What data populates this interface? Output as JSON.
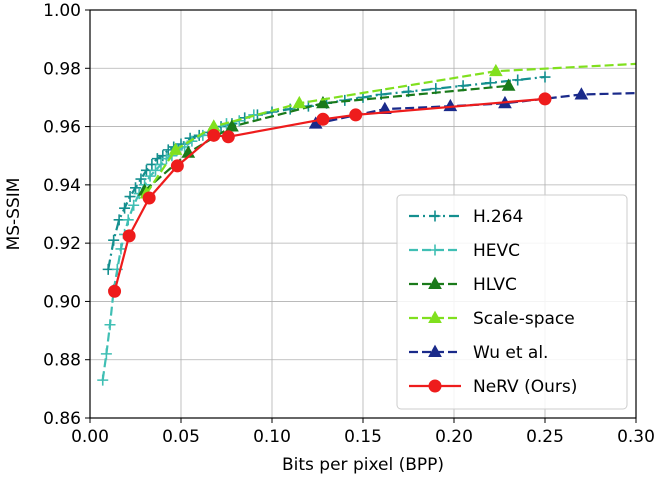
{
  "chart_data": {
    "type": "line",
    "title": "",
    "xlabel": "Bits per pixel (BPP)",
    "ylabel": "MS-SSIM",
    "xlim": [
      0,
      0.3
    ],
    "ylim": [
      0.86,
      1.0
    ],
    "x_ticks": [
      0.0,
      0.05,
      0.1,
      0.15,
      0.2,
      0.25,
      0.3
    ],
    "x_tick_labels": [
      "0.00",
      "0.05",
      "0.10",
      "0.15",
      "0.20",
      "0.25",
      "0.30"
    ],
    "y_ticks": [
      0.86,
      0.88,
      0.9,
      0.92,
      0.94,
      0.96,
      0.98,
      1.0
    ],
    "y_tick_labels": [
      "0.86",
      "0.88",
      "0.90",
      "0.92",
      "0.94",
      "0.96",
      "0.98",
      "1.00"
    ],
    "grid": true,
    "legend_position": "bottom-right",
    "series": [
      {
        "name": "H.264",
        "color": "#148f8f",
        "line": "dashdot",
        "marker": "plus",
        "x": [
          0.01,
          0.013,
          0.016,
          0.019,
          0.022,
          0.025,
          0.028,
          0.031,
          0.034,
          0.037,
          0.04,
          0.043,
          0.046,
          0.05,
          0.055,
          0.06,
          0.066,
          0.072,
          0.078,
          0.085,
          0.092,
          0.1,
          0.11,
          0.12,
          0.13,
          0.14,
          0.15,
          0.16,
          0.175,
          0.19,
          0.205,
          0.22,
          0.235,
          0.25
        ],
        "y": [
          0.911,
          0.921,
          0.928,
          0.932,
          0.936,
          0.939,
          0.942,
          0.945,
          0.947,
          0.949,
          0.95,
          0.952,
          0.953,
          0.954,
          0.956,
          0.957,
          0.958,
          0.96,
          0.961,
          0.963,
          0.964,
          0.965,
          0.966,
          0.967,
          0.968,
          0.969,
          0.97,
          0.971,
          0.972,
          0.973,
          0.974,
          0.975,
          0.976,
          0.977
        ]
      },
      {
        "name": "HEVC",
        "color": "#40bfb4",
        "line": "dashed",
        "marker": "plus",
        "x": [
          0.007,
          0.009,
          0.011,
          0.013,
          0.015,
          0.017,
          0.019,
          0.021,
          0.024,
          0.027,
          0.03,
          0.033,
          0.036,
          0.039,
          0.042,
          0.045,
          0.048,
          0.052,
          0.056,
          0.062,
          0.068,
          0.075,
          0.082,
          0.09
        ],
        "y": [
          0.873,
          0.882,
          0.892,
          0.904,
          0.911,
          0.918,
          0.923,
          0.928,
          0.933,
          0.937,
          0.94,
          0.943,
          0.945,
          0.947,
          0.949,
          0.95,
          0.952,
          0.953,
          0.955,
          0.957,
          0.959,
          0.961,
          0.962,
          0.964
        ]
      },
      {
        "name": "HLVC",
        "color": "#1a7a1a",
        "line": "dashed",
        "marker": "triangle",
        "x": [
          0.03,
          0.054,
          0.078,
          0.128,
          0.23
        ],
        "y": [
          0.938,
          0.951,
          0.96,
          0.968,
          0.974
        ]
      },
      {
        "name": "Scale-space",
        "color": "#80e01e",
        "line": "dashed",
        "marker": "triangle",
        "x": [
          0.031,
          0.047,
          0.068,
          0.115,
          0.223,
          0.3
        ],
        "y": [
          0.937,
          0.952,
          0.96,
          0.968,
          0.979,
          0.9815
        ]
      },
      {
        "name": "Wu et al.",
        "color": "#1a2a8a",
        "line": "dashed",
        "marker": "triangle",
        "x": [
          0.124,
          0.162,
          0.198,
          0.228,
          0.27,
          0.3
        ],
        "y": [
          0.961,
          0.966,
          0.967,
          0.968,
          0.971,
          0.9715
        ]
      },
      {
        "name": "NeRV (Ours)",
        "color": "#ee1c1c",
        "line": "solid",
        "marker": "circle",
        "x": [
          0.0135,
          0.0215,
          0.0325,
          0.048,
          0.068,
          0.076,
          0.128,
          0.146,
          0.25
        ],
        "y": [
          0.9035,
          0.9225,
          0.9355,
          0.9465,
          0.957,
          0.9565,
          0.9625,
          0.964,
          0.9695
        ]
      }
    ]
  }
}
